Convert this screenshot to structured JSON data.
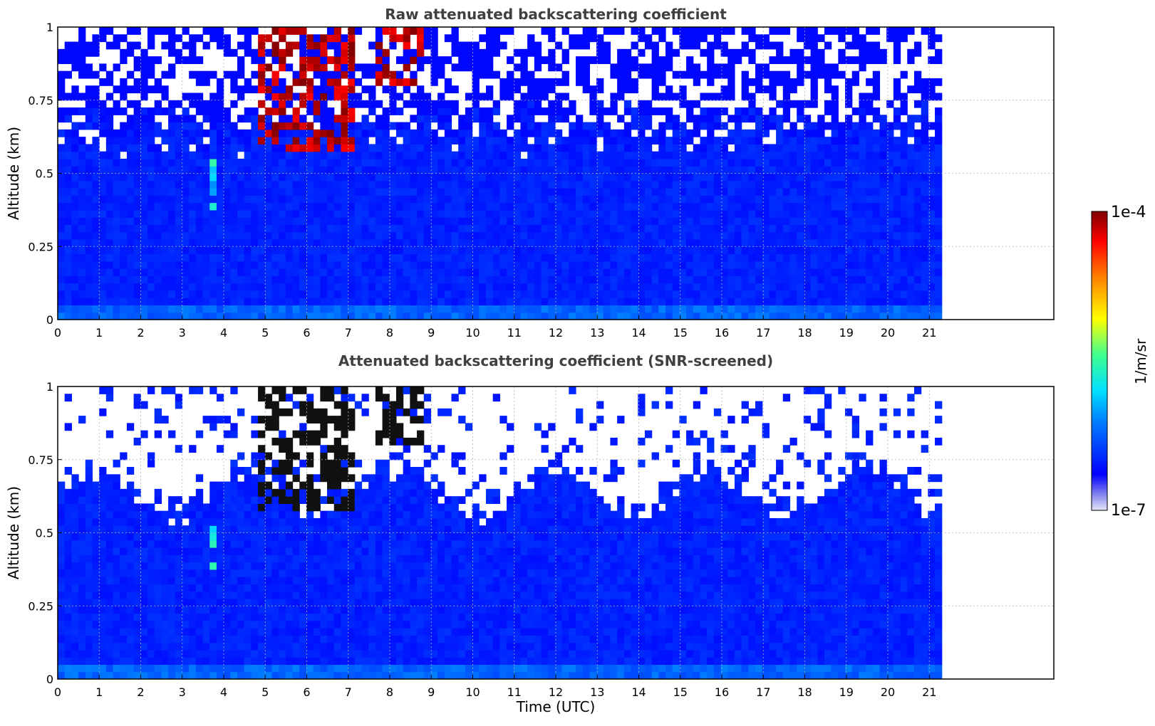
{
  "chart_data": [
    {
      "type": "heatmap",
      "title": "Raw attenuated backscattering coefficient",
      "xlabel": "",
      "ylabel": "Altitude (km)",
      "xlim": [
        0,
        24
      ],
      "ylim": [
        0,
        1
      ],
      "xticks": [
        "0",
        "1",
        "2",
        "3",
        "4",
        "5",
        "6",
        "7",
        "8",
        "9",
        "10",
        "11",
        "12",
        "13",
        "14",
        "15",
        "16",
        "17",
        "18",
        "19",
        "20",
        "21"
      ],
      "yticks": [
        "0",
        "0.25",
        "0.5",
        "0.75",
        "1"
      ],
      "data_extent_x": [
        0,
        21.3
      ],
      "grid": true,
      "screened": false,
      "cloud_features": [
        {
          "x_range": [
            4.9,
            7.1
          ],
          "y_range": [
            0.58,
            1.0
          ],
          "level": "high"
        },
        {
          "x_range": [
            7.6,
            8.8
          ],
          "y_range": [
            0.8,
            1.0
          ],
          "level": "high"
        },
        {
          "x_range": [
            3.7,
            3.9
          ],
          "y_range": [
            0.38,
            0.55
          ],
          "level": "medium"
        }
      ]
    },
    {
      "type": "heatmap",
      "title": "Attenuated backscattering coefficient (SNR-screened)",
      "xlabel": "Time (UTC)",
      "ylabel": "Altitude (km)",
      "xlim": [
        0,
        24
      ],
      "ylim": [
        0,
        1
      ],
      "xticks": [
        "0",
        "1",
        "2",
        "3",
        "4",
        "5",
        "6",
        "7",
        "8",
        "9",
        "10",
        "11",
        "12",
        "13",
        "14",
        "15",
        "16",
        "17",
        "18",
        "19",
        "20",
        "21"
      ],
      "yticks": [
        "0",
        "0.25",
        "0.5",
        "0.75",
        "1"
      ],
      "data_extent_x": [
        0,
        21.3
      ],
      "grid": true,
      "screened": true,
      "cloud_features": [
        {
          "x_range": [
            4.9,
            7.1
          ],
          "y_range": [
            0.58,
            1.0
          ],
          "level": "high"
        },
        {
          "x_range": [
            7.6,
            8.8
          ],
          "y_range": [
            0.8,
            1.0
          ],
          "level": "high"
        },
        {
          "x_range": [
            3.7,
            3.9
          ],
          "y_range": [
            0.38,
            0.55
          ],
          "level": "medium"
        }
      ]
    }
  ],
  "colorbar": {
    "label": "1/m/sr",
    "max_label": "1e-4",
    "min_label": "1e-7",
    "colormap": "jet",
    "scale": "log"
  }
}
